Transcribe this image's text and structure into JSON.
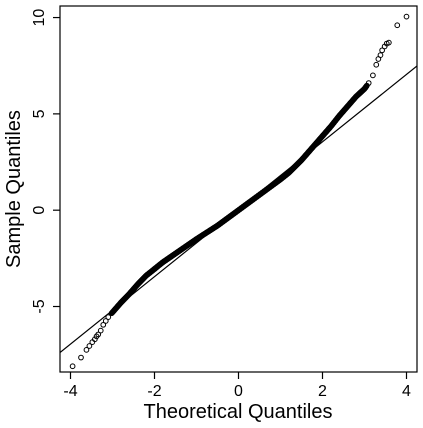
{
  "chart_data": {
    "type": "scatter",
    "xlabel": "Theoretical Quantiles",
    "ylabel": "Sample Quantiles",
    "xlim": [
      -4.25,
      4.25
    ],
    "ylim": [
      -8.4,
      10.6
    ],
    "x_ticks": [
      -4,
      -2,
      0,
      2,
      4
    ],
    "y_ticks": [
      -5,
      0,
      5,
      10
    ],
    "grid": false,
    "reference_line": {
      "slope": 1.75,
      "intercept": 0.05
    },
    "series": [
      {
        "points": [
          [
            -3.95,
            -8.1
          ],
          [
            -3.75,
            -7.65
          ],
          [
            -3.62,
            -7.25
          ],
          [
            -3.55,
            -7.05
          ],
          [
            -3.48,
            -6.85
          ],
          [
            -3.42,
            -6.7
          ],
          [
            -3.38,
            -6.55
          ],
          [
            -3.34,
            -6.45
          ],
          [
            -3.28,
            -6.25
          ],
          [
            -3.22,
            -5.95
          ],
          [
            -3.16,
            -5.75
          ],
          [
            -3.1,
            -5.55
          ],
          [
            -3.0,
            -5.3
          ],
          [
            -2.9,
            -5.05
          ],
          [
            -2.8,
            -4.8
          ],
          [
            -2.6,
            -4.35
          ],
          [
            -2.4,
            -3.85
          ],
          [
            -2.2,
            -3.4
          ],
          [
            -2.0,
            -3.05
          ],
          [
            -1.8,
            -2.7
          ],
          [
            -1.5,
            -2.25
          ],
          [
            -1.2,
            -1.8
          ],
          [
            -1.0,
            -1.5
          ],
          [
            -0.5,
            -0.8
          ],
          [
            0.0,
            0.0
          ],
          [
            0.5,
            0.8
          ],
          [
            1.0,
            1.6
          ],
          [
            1.2,
            1.95
          ],
          [
            1.5,
            2.6
          ],
          [
            1.8,
            3.35
          ],
          [
            2.0,
            3.85
          ],
          [
            2.2,
            4.35
          ],
          [
            2.4,
            4.9
          ],
          [
            2.6,
            5.4
          ],
          [
            2.8,
            5.9
          ],
          [
            3.0,
            6.3
          ],
          [
            3.1,
            6.6
          ],
          [
            3.2,
            7.0
          ],
          [
            3.28,
            7.55
          ],
          [
            3.33,
            7.85
          ],
          [
            3.38,
            8.05
          ],
          [
            3.42,
            8.3
          ],
          [
            3.48,
            8.5
          ],
          [
            3.53,
            8.65
          ],
          [
            3.58,
            8.7
          ],
          [
            3.78,
            9.6
          ],
          [
            4.0,
            10.05
          ]
        ]
      }
    ]
  }
}
